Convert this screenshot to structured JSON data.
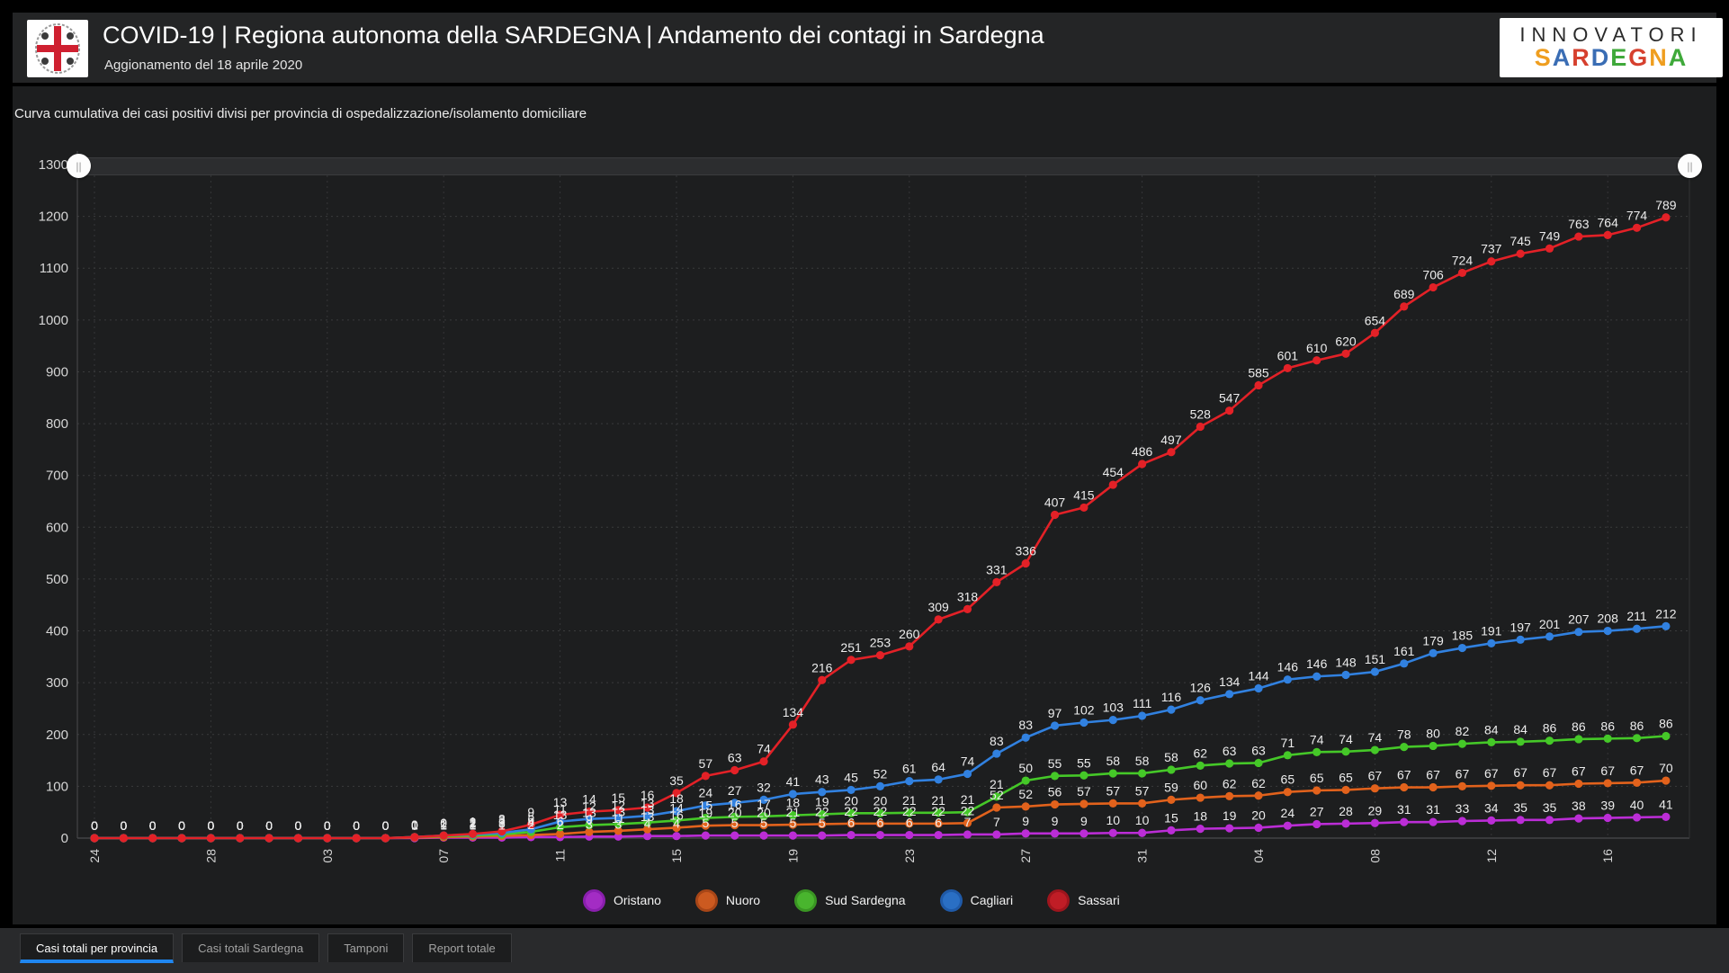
{
  "header": {
    "title": "COVID-19 | Regiona autonoma della SARDEGNA | Andamento dei contagi in Sardegna",
    "subtitle": "Aggionamento del 18 aprile 2020",
    "emblem": "sardinia-coat-of-arms"
  },
  "brand": {
    "line1": "INNOVATORI",
    "letters": [
      {
        "ch": "S",
        "color": "#ef9e1f"
      },
      {
        "ch": "A",
        "color": "#3a6db4"
      },
      {
        "ch": "R",
        "color": "#d6402e"
      },
      {
        "ch": "D",
        "color": "#3a6db4"
      },
      {
        "ch": "E",
        "color": "#3fa93a"
      },
      {
        "ch": "G",
        "color": "#d6402e"
      },
      {
        "ch": "N",
        "color": "#ef9e1f"
      },
      {
        "ch": "A",
        "color": "#3fa93a"
      }
    ]
  },
  "section_title": "Curva cumulativa dei casi positivi divisi per provincia di ospedalizzazione/isolamento domiciliare",
  "chart_data": {
    "type": "line",
    "stacked": true,
    "title": "Curva cumulativa dei casi positivi divisi per provincia di ospedalizzazione/isolamento domiciliare",
    "xlabel": "",
    "ylabel": "",
    "ylim": [
      0,
      1300
    ],
    "y_tick_step": 100,
    "grid": "dotted",
    "legend_position": "bottom",
    "n_points": 55,
    "x_tick_every": 4,
    "x_tick_labels": [
      "24",
      "28",
      "03",
      "07",
      "11",
      "15",
      "19",
      "23",
      "27",
      "31",
      "04",
      "08",
      "12",
      "16"
    ],
    "series": [
      {
        "name": "Oristano",
        "color": "#bb2dd6",
        "values": [
          0,
          0,
          0,
          0,
          0,
          0,
          0,
          0,
          0,
          0,
          0,
          0,
          1,
          1,
          1,
          2,
          2,
          3,
          3,
          4,
          4,
          5,
          5,
          5,
          5,
          5,
          6,
          6,
          6,
          6,
          7,
          7,
          9,
          9,
          9,
          10,
          10,
          15,
          18,
          19,
          20,
          24,
          27,
          28,
          29,
          31,
          31,
          33,
          34,
          35,
          35,
          38,
          39,
          40,
          41
        ]
      },
      {
        "name": "Nuoro",
        "color": "#e2621c",
        "values": [
          0,
          0,
          0,
          0,
          0,
          0,
          0,
          0,
          0,
          0,
          0,
          1,
          1,
          2,
          3,
          4,
          6,
          9,
          11,
          13,
          16,
          19,
          20,
          20,
          21,
          22,
          22,
          22,
          22,
          22,
          22,
          52,
          52,
          56,
          57,
          57,
          57,
          59,
          60,
          62,
          62,
          65,
          65,
          65,
          67,
          67,
          67,
          67,
          67,
          67,
          67,
          67,
          67,
          67,
          70
        ]
      },
      {
        "name": "Sud Sardegna",
        "color": "#45c828",
        "values": [
          0,
          0,
          0,
          0,
          0,
          0,
          0,
          0,
          0,
          0,
          0,
          1,
          2,
          2,
          3,
          6,
          13,
          13,
          13,
          13,
          14,
          15,
          16,
          17,
          18,
          19,
          20,
          20,
          21,
          21,
          21,
          21,
          50,
          55,
          55,
          58,
          58,
          58,
          62,
          63,
          63,
          71,
          74,
          74,
          74,
          78,
          80,
          82,
          84,
          84,
          86,
          86,
          86,
          86,
          86
        ]
      },
      {
        "name": "Cagliari",
        "color": "#3181e0",
        "values": [
          0,
          0,
          0,
          0,
          0,
          0,
          0,
          0,
          0,
          0,
          0,
          0,
          1,
          2,
          3,
          5,
          11,
          12,
          12,
          13,
          18,
          24,
          27,
          32,
          41,
          43,
          45,
          52,
          61,
          64,
          74,
          83,
          83,
          97,
          102,
          103,
          111,
          116,
          126,
          134,
          144,
          146,
          146,
          148,
          151,
          161,
          179,
          185,
          191,
          197,
          201,
          207,
          208,
          211,
          212
        ]
      },
      {
        "name": "Sassari",
        "color": "#e32127",
        "values": [
          0,
          0,
          0,
          0,
          0,
          0,
          0,
          0,
          0,
          0,
          0,
          0,
          0,
          1,
          3,
          9,
          13,
          14,
          15,
          16,
          35,
          57,
          63,
          74,
          134,
          216,
          251,
          253,
          260,
          309,
          318,
          331,
          336,
          407,
          415,
          454,
          486,
          497,
          528,
          547,
          585,
          601,
          610,
          620,
          654,
          689,
          706,
          724,
          737,
          745,
          749,
          763,
          764,
          774,
          789
        ]
      }
    ]
  },
  "slider": {
    "handle_glyph": "||"
  },
  "legend": {
    "items": [
      {
        "label": "Oristano",
        "fill": "#a32cc4",
        "ring": "#8a1fae"
      },
      {
        "label": "Nuoro",
        "fill": "#cc5a20",
        "ring": "#a84617"
      },
      {
        "label": "Sud Sardegna",
        "fill": "#49b52e",
        "ring": "#3a9623"
      },
      {
        "label": "Cagliari",
        "fill": "#2a6fc4",
        "ring": "#1f5aa8"
      },
      {
        "label": "Sassari",
        "fill": "#c01d26",
        "ring": "#9e151d"
      }
    ]
  },
  "tabs": {
    "items": [
      {
        "label": "Casi totali per provincia",
        "active": true
      },
      {
        "label": "Casi totali Sardegna",
        "active": false
      },
      {
        "label": "Tamponi",
        "active": false
      },
      {
        "label": "Report totale",
        "active": false
      }
    ]
  }
}
